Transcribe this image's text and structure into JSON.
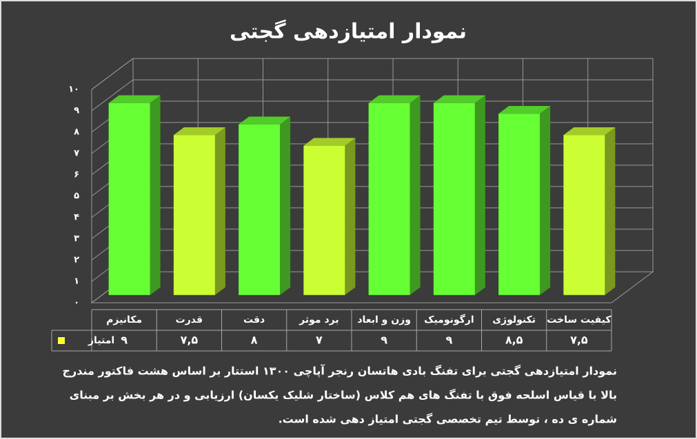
{
  "chart_data": {
    "type": "bar3d",
    "title": "نمودار امتیازدهی گجتی",
    "categories": [
      "مکانیزم",
      "قدرت",
      "دقت",
      "برد موثر",
      "وزن و ابعاد",
      "ارگونومیک",
      "تکنولوژی",
      "کیفیت ساخت"
    ],
    "series": [
      {
        "name": "امتیاز",
        "color": "#ffff33",
        "values": [
          9,
          7.5,
          8,
          7,
          9,
          9,
          8.5,
          7.5
        ],
        "value_labels": [
          "۹",
          "۷,۵",
          "۸",
          "۷",
          "۹",
          "۹",
          "۸,۵",
          "۷,۵"
        ],
        "point_colors": [
          "#66ff33",
          "#ccff33",
          "#66ff33",
          "#ccff33",
          "#66ff33",
          "#66ff33",
          "#66ff33",
          "#ccff33"
        ]
      }
    ],
    "ylim": [
      0,
      10
    ],
    "yticks": [
      {
        "value": 0,
        "label": "۰"
      },
      {
        "value": 1,
        "label": "۱"
      },
      {
        "value": 2,
        "label": "۲"
      },
      {
        "value": 3,
        "label": "۳"
      },
      {
        "value": 4,
        "label": "۴"
      },
      {
        "value": 5,
        "label": "۵"
      },
      {
        "value": 6,
        "label": "۶"
      },
      {
        "value": 7,
        "label": "۷"
      },
      {
        "value": 8,
        "label": "۸"
      },
      {
        "value": 9,
        "label": "۹"
      },
      {
        "value": 10,
        "label": "۱۰"
      }
    ],
    "grid": true,
    "annotations": [
      "نمودار امتیازدهی گجتی برای تفنگ بادی هاتسان رنجر آپاچی ۱۳۰۰ استتار بر اساس هشت فاکتور مندرج",
      "بالا با قیاس اسلحه فوق با تفنگ های هم کلاس (ساختار شلیک یکسان) ارزیابی و در هر بخش بر مبنای",
      "شماره ی ده ، توسط تیم تخصصی گجتی امتیاز دهی شده است."
    ]
  }
}
